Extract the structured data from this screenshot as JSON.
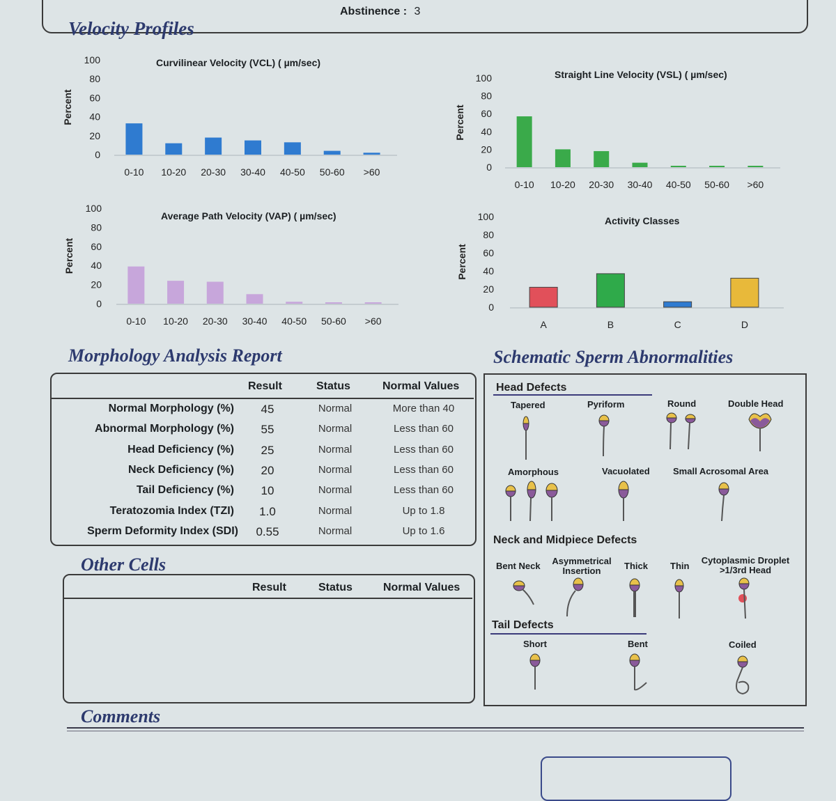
{
  "header": {
    "abstinence_label": "Abstinence :",
    "abstinence_value": "3"
  },
  "velocity": {
    "title": "Velocity Profiles",
    "y_axis_label": "Percent",
    "y_ticks": [
      "100",
      "80",
      "60",
      "40",
      "20",
      "0"
    ]
  },
  "chart_data": [
    {
      "type": "bar",
      "title": "Curvilinear Velocity (VCL) ( µm/sec)",
      "ylabel": "Percent",
      "categories": [
        "0-10",
        "10-20",
        "20-30",
        "30-40",
        "40-50",
        "50-60",
        ">60"
      ],
      "values": [
        33,
        12,
        18,
        15,
        13,
        4,
        2
      ],
      "ylim": [
        0,
        100
      ],
      "color": "#2f7bd0"
    },
    {
      "type": "bar",
      "title": "Straight Line Velocity (VSL) ( µm/sec)",
      "ylabel": "Percent",
      "categories": [
        "0-10",
        "10-20",
        "20-30",
        "30-40",
        "40-50",
        "50-60",
        ">60"
      ],
      "values": [
        57,
        20,
        18,
        5,
        1,
        0.5,
        0.5
      ],
      "ylim": [
        0,
        100
      ],
      "color": "#3aaa4a"
    },
    {
      "type": "bar",
      "title": "Average Path Velocity (VAP) ( µm/sec)",
      "ylabel": "Percent",
      "categories": [
        "0-10",
        "10-20",
        "20-30",
        "30-40",
        "40-50",
        "50-60",
        ">60"
      ],
      "values": [
        39,
        24,
        23,
        10,
        2,
        0.5,
        0.5
      ],
      "ylim": [
        0,
        100
      ],
      "color": "#c7a6db"
    },
    {
      "type": "bar",
      "title": "Activity Classes",
      "ylabel": "Percent",
      "categories": [
        "A",
        "B",
        "C",
        "D"
      ],
      "values": [
        22,
        37,
        6,
        32
      ],
      "ylim": [
        0,
        100
      ],
      "colors": [
        "#e1505a",
        "#2faa4a",
        "#2f7bd0",
        "#e8b93a"
      ]
    }
  ],
  "morphology": {
    "title": "Morphology Analysis Report",
    "headers": {
      "result": "Result",
      "status": "Status",
      "normal": "Normal Values"
    },
    "rows": [
      {
        "label": "Normal Morphology (%)",
        "result": "45",
        "status": "Normal",
        "normal": "More than 40"
      },
      {
        "label": "Abnormal Morphology (%)",
        "result": "55",
        "status": "Normal",
        "normal": "Less than 60"
      },
      {
        "label": "Head Deficiency (%)",
        "result": "25",
        "status": "Normal",
        "normal": "Less than 60"
      },
      {
        "label": "Neck Deficiency (%)",
        "result": "20",
        "status": "Normal",
        "normal": "Less than 60"
      },
      {
        "label": "Tail Deficiency (%)",
        "result": "10",
        "status": "Normal",
        "normal": "Less than 60"
      },
      {
        "label": "Teratozomia Index (TZI)",
        "result": "1.0",
        "status": "Normal",
        "normal": "Up to 1.8"
      },
      {
        "label": "Sperm Deformity Index (SDI)",
        "result": "0.55",
        "status": "Normal",
        "normal": "Up to 1.6"
      }
    ]
  },
  "other_cells": {
    "title": "Other Cells",
    "headers": {
      "result": "Result",
      "status": "Status",
      "normal": "Normal Values"
    }
  },
  "schematic": {
    "title": "Schematic Sperm Abnormalities",
    "head_defects": {
      "title": "Head Defects",
      "items": [
        "Tapered",
        "Pyriform",
        "Round",
        "Double Head",
        "Amorphous",
        "Vacuolated",
        "Small Acrosomal Area"
      ]
    },
    "neck_defects": {
      "title": "Neck and Midpiece Defects",
      "items": [
        "Bent Neck",
        "Asymmetrical Insertion",
        "Thick",
        "Thin",
        "Cytoplasmic Droplet >1/3rd Head"
      ]
    },
    "tail_defects": {
      "title": "Tail Defects",
      "items": [
        "Short",
        "Bent",
        "Coiled"
      ]
    }
  },
  "comments": {
    "title": "Comments"
  },
  "icons": {
    "sperm_head_top": "#e8c14a",
    "sperm_head_bottom": "#8a5a9a",
    "droplet": "#e1505a"
  }
}
